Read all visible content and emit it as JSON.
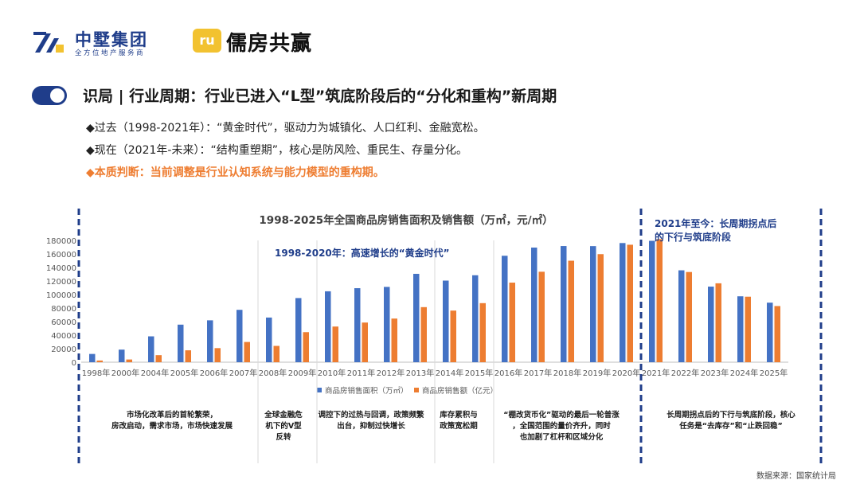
{
  "header": {
    "company_cn": "中墅集团",
    "company_sub": "全方位地产服务商",
    "badge_text": "ru",
    "brand": "儒房共赢"
  },
  "title": "识局 | 行业周期：行业已进入“L型”筑底阶段后的“分化和重构”新周期",
  "bullets": [
    "◆过去（1998-2021年）：“黄金时代”，驱动力为城镇化、人口红利、金融宽松。",
    "◆现在（2021年-未来）：“结构重塑期”，核心是防风险、重民生、存量分化。",
    "◆本质判断：当前调整是行业认知系统与能力模型的重构期。"
  ],
  "source": "数据来源：国家统计局",
  "chart_data": {
    "type": "bar",
    "title": "1998-2025年全国商品房销售面积及销售额（万㎡，元/㎡）",
    "categories": [
      "1998年",
      "2000年",
      "2004年",
      "2005年",
      "2006年",
      "2007年",
      "2008年",
      "2009年",
      "2010年",
      "2011年",
      "2012年",
      "2013年",
      "2014年",
      "2015年",
      "2016年",
      "2017年",
      "2018年",
      "2019年",
      "2020年",
      "2021年",
      "2022年",
      "2023年",
      "2024年",
      "2025年"
    ],
    "series": [
      {
        "name": "商品房销售面积（万㎡）",
        "color": "#4472c4",
        "values": [
          12200,
          18600,
          38200,
          55500,
          61900,
          77400,
          66000,
          94800,
          104800,
          109400,
          111300,
          130600,
          120600,
          128500,
          157300,
          169400,
          171700,
          171600,
          176100,
          179400,
          135800,
          111700,
          97400,
          88000
        ]
      },
      {
        "name": "商品房销售额（亿元）",
        "color": "#ed7d31",
        "values": [
          2500,
          4000,
          10400,
          17600,
          20800,
          29900,
          24100,
          44400,
          52700,
          58600,
          64500,
          81400,
          76300,
          87300,
          117600,
          133700,
          150000,
          159700,
          173600,
          181900,
          133300,
          116600,
          96800,
          83000
        ]
      }
    ],
    "ylim": [
      0,
      180000
    ],
    "yticks": [
      0,
      20000,
      40000,
      60000,
      80000,
      100000,
      120000,
      140000,
      160000,
      180000
    ],
    "annotations": {
      "era1_label": "1998-2020年：高速增长的“黄金时代”",
      "era2_label": "2021年至今：长周期拐点后的下行与筑底阶段"
    },
    "phase_notes": [
      "市场化改革后的首轮繁荣，房改启动，需求市场，市场快速发展",
      "全球金融危机下的V型反转",
      "调控下的过热与回调，政策频繁出台，抑制过快增长",
      "库存累积与政策宽松期",
      "“棚改货币化”驱动的最后一轮普涨，全国范围的量价齐升，同时也加剧了杠杆和区域分化",
      "长周期拐点后的下行与筑底阶段，核心任务是“去库存”和“止跌回稳”"
    ]
  }
}
